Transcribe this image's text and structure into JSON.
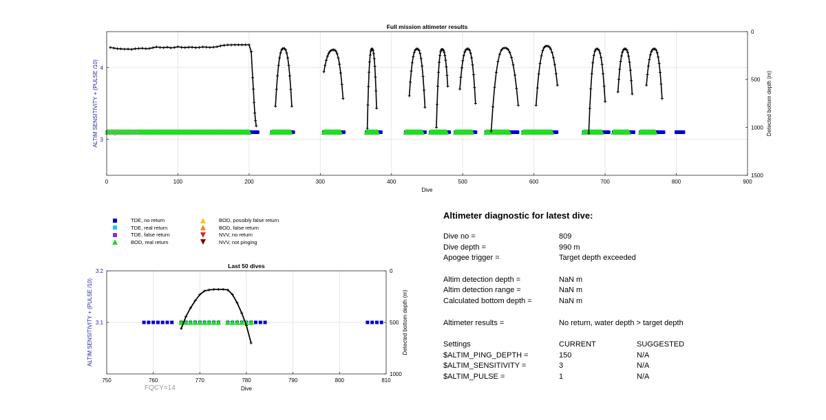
{
  "chart_data": [
    {
      "type": "scatter",
      "title": "Full mission altimeter results",
      "xlabel": "Dive",
      "ylabel": "ALTIM SENSITIVITY + (PULSE /10)",
      "y2label": "Detected bottom depth (m)",
      "annotation": "FQCY=14",
      "xlim": [
        0,
        900
      ],
      "ylim": [
        2.5,
        4.5
      ],
      "y2lim": [
        0,
        1500
      ],
      "y2_reversed": true,
      "grid": true,
      "xticks": [
        "0",
        "100",
        "200",
        "300",
        "400",
        "500",
        "600",
        "700",
        "800",
        "900"
      ],
      "yticks": [
        "3",
        "4"
      ],
      "y2ticks": [
        "0",
        "500",
        "1000",
        "1500"
      ],
      "sensitivity_level": 3.1,
      "tde_no_return_ranges": [
        [
          1,
          205
        ],
        [
          208,
          212
        ],
        [
          232,
          262
        ],
        [
          305,
          333
        ],
        [
          365,
          385
        ],
        [
          420,
          447
        ],
        [
          455,
          481
        ],
        [
          490,
          518
        ],
        [
          533,
          577
        ],
        [
          585,
          632
        ],
        [
          670,
          705
        ],
        [
          712,
          740
        ],
        [
          750,
          782
        ],
        [
          800,
          810
        ]
      ],
      "bod_real_return_ranges": [
        [
          1,
          200
        ],
        [
          232,
          258
        ],
        [
          305,
          328
        ],
        [
          365,
          380
        ],
        [
          420,
          443
        ],
        [
          455,
          477
        ],
        [
          490,
          513
        ],
        [
          533,
          565
        ],
        [
          585,
          625
        ],
        [
          670,
          695
        ],
        [
          712,
          733
        ],
        [
          750,
          770
        ]
      ],
      "depth_profile_flat": {
        "x": [
          5,
          10,
          15,
          20,
          25,
          30,
          35,
          40,
          45,
          50,
          55,
          60,
          65,
          70,
          75,
          80,
          85,
          90,
          95,
          100,
          105,
          110,
          115,
          120,
          125,
          130,
          135,
          140,
          145,
          150,
          155,
          160,
          165,
          170,
          175,
          180,
          185,
          190,
          195,
          200,
          203
        ],
        "depth": [
          165,
          172,
          178,
          180,
          183,
          182,
          185,
          178,
          176,
          174,
          178,
          176,
          168,
          160,
          165,
          168,
          162,
          170,
          166,
          158,
          164,
          167,
          163,
          162,
          168,
          165,
          160,
          162,
          165,
          162,
          158,
          148,
          143,
          139,
          139,
          138,
          138,
          138,
          138,
          138,
          210
        ]
      },
      "depth_profile_drop": {
        "x": [
          203,
          205,
          206,
          207,
          208,
          209,
          210
        ],
        "depth": [
          210,
          480,
          600,
          740,
          850,
          930,
          985
        ]
      },
      "depth_arches": [
        {
          "x0": 237,
          "x1": 260,
          "bottom0": 780,
          "bottom1": 780,
          "peak": 175
        },
        {
          "x0": 305,
          "x1": 332,
          "bottom0": 420,
          "bottom1": 700,
          "peak": 190
        },
        {
          "x0": 366,
          "x1": 379,
          "bottom0": 1010,
          "bottom1": 800,
          "peak": 180
        },
        {
          "x0": 425,
          "x1": 447,
          "bottom0": 670,
          "bottom1": 790,
          "peak": 180
        },
        {
          "x0": 463,
          "x1": 479,
          "bottom0": 1000,
          "bottom1": 570,
          "peak": 185
        },
        {
          "x0": 496,
          "x1": 518,
          "bottom0": 600,
          "bottom1": 750,
          "peak": 180
        },
        {
          "x0": 540,
          "x1": 578,
          "bottom0": 1040,
          "bottom1": 770,
          "peak": 170
        },
        {
          "x0": 603,
          "x1": 633,
          "bottom0": 770,
          "bottom1": 560,
          "peak": 150
        },
        {
          "x0": 677,
          "x1": 700,
          "bottom0": 1060,
          "bottom1": 730,
          "peak": 180
        },
        {
          "x0": 718,
          "x1": 738,
          "bottom0": 630,
          "bottom1": 650,
          "peak": 180
        },
        {
          "x0": 758,
          "x1": 780,
          "bottom0": 560,
          "bottom1": 700,
          "peak": 180
        }
      ]
    },
    {
      "type": "scatter",
      "title": "Last 50 dives",
      "xlabel": "Dive",
      "ylabel": "ALTIM SENSITIVITY + (PULSE /10)",
      "y2label": "Detected bottom depth (m)",
      "annotation": "FQCY=14",
      "xlim": [
        750,
        810
      ],
      "ylim": [
        3.0,
        3.2
      ],
      "y2lim": [
        0,
        1000
      ],
      "y2_reversed": true,
      "grid": true,
      "xticks": [
        "750",
        "760",
        "770",
        "780",
        "790",
        "800",
        "810"
      ],
      "yticks": [
        "3.1",
        "3.2"
      ],
      "y2ticks": [
        "0",
        "500",
        "1000"
      ],
      "sensitivity_level": 3.1,
      "tde_no_return_dives": [
        758,
        759,
        760,
        761,
        762,
        763,
        764,
        766,
        767,
        768,
        769,
        770,
        771,
        772,
        773,
        774,
        776,
        777,
        778,
        779,
        780,
        781,
        782,
        783,
        784,
        806,
        807,
        808,
        809
      ],
      "bod_real_return_dives": [
        766,
        767,
        768,
        769,
        770,
        771,
        772,
        773,
        774,
        776,
        777,
        778,
        779,
        780,
        781
      ],
      "depth_profile": {
        "x": [
          766,
          767,
          768,
          769,
          770,
          771,
          772,
          773,
          774,
          775,
          776,
          777,
          778,
          779,
          780,
          781
        ],
        "depth": [
          560,
          445,
          360,
          290,
          230,
          195,
          185,
          180,
          180,
          180,
          185,
          230,
          310,
          410,
          530,
          700
        ]
      }
    }
  ],
  "legend": [
    {
      "label": "TDE, no return",
      "color": "#0000cc",
      "shape": "square"
    },
    {
      "label": "TDE, real return",
      "color": "#22c8e0",
      "shape": "square"
    },
    {
      "label": "TDE, false return",
      "color": "#8a2be2",
      "shape": "square"
    },
    {
      "label": "BOD, real return",
      "color": "#22dd22",
      "shape": "triangle-up"
    },
    {
      "label": "BOD, possibly false return",
      "color": "#f5c518",
      "shape": "triangle-up"
    },
    {
      "label": "BOD, false return",
      "color": "#f08a18",
      "shape": "triangle-up"
    },
    {
      "label": "NVV, no return",
      "color": "#dd2222",
      "shape": "triangle-down"
    },
    {
      "label": "NVV, not pinging",
      "color": "#7a0000",
      "shape": "triangle-down"
    }
  ],
  "colors": {
    "axis_blue": "#2020aa",
    "annotation_gray": "#9a9a9a"
  },
  "diagnostic": {
    "title": "Altimeter diagnostic for latest dive:",
    "rows": [
      {
        "label": "Dive no =",
        "value": "809"
      },
      {
        "label": "Dive depth =",
        "value": "990 m"
      },
      {
        "label": "Apogee trigger =",
        "value": "Target depth exceeded"
      },
      {
        "label": "Altim detection depth =",
        "value": "NaN m"
      },
      {
        "label": "Altim detection range =",
        "value": "NaN m"
      },
      {
        "label": "Calculated bottom depth =",
        "value": "NaN m"
      },
      {
        "label": "Altimeter results =",
        "value": "No return, water depth > target depth"
      }
    ],
    "settings_header": {
      "label": "Settings",
      "current": "CURRENT",
      "suggested": "SUGGESTED"
    },
    "settings": [
      {
        "label": "$ALTIM_PING_DEPTH =",
        "current": "150",
        "suggested": "N/A"
      },
      {
        "label": "$ALTIM_SENSITIVITY =",
        "current": "3",
        "suggested": "N/A"
      },
      {
        "label": "$ALTIM_PULSE =",
        "current": "1",
        "suggested": "N/A"
      }
    ]
  }
}
